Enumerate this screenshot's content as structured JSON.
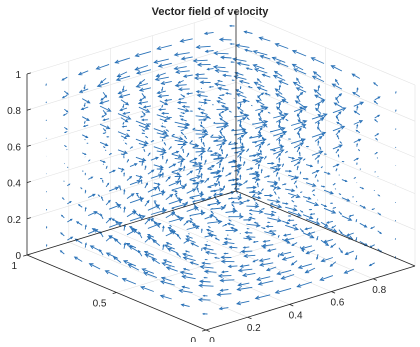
{
  "chart_data": {
    "type": "quiver3",
    "title": "Vector field of velocity",
    "xlabel": "",
    "ylabel": "",
    "zlabel": "",
    "xlim": [
      0,
      1
    ],
    "ylim": [
      0,
      1
    ],
    "zlim": [
      0,
      1
    ],
    "x_ticks": [
      "0",
      "0.2",
      "0.4",
      "0.6",
      "0.8"
    ],
    "y_ticks": [
      "0",
      "0.5",
      "1"
    ],
    "z_ticks": [
      "0",
      "0.2",
      "0.4",
      "0.6",
      "0.8",
      "1"
    ],
    "grid": true,
    "arrow_color": "#2a72b8",
    "field": {
      "grid_points_per_axis": 10,
      "description_u": "-sin(pi*x)*cos(pi*y)*cos(pi*z)",
      "description_v": "cos(pi*x)*sin(pi*y)*cos(pi*z)",
      "description_w": "0.35*sin(pi*x)*sin(pi*y)*sin(pi*z)"
    }
  }
}
